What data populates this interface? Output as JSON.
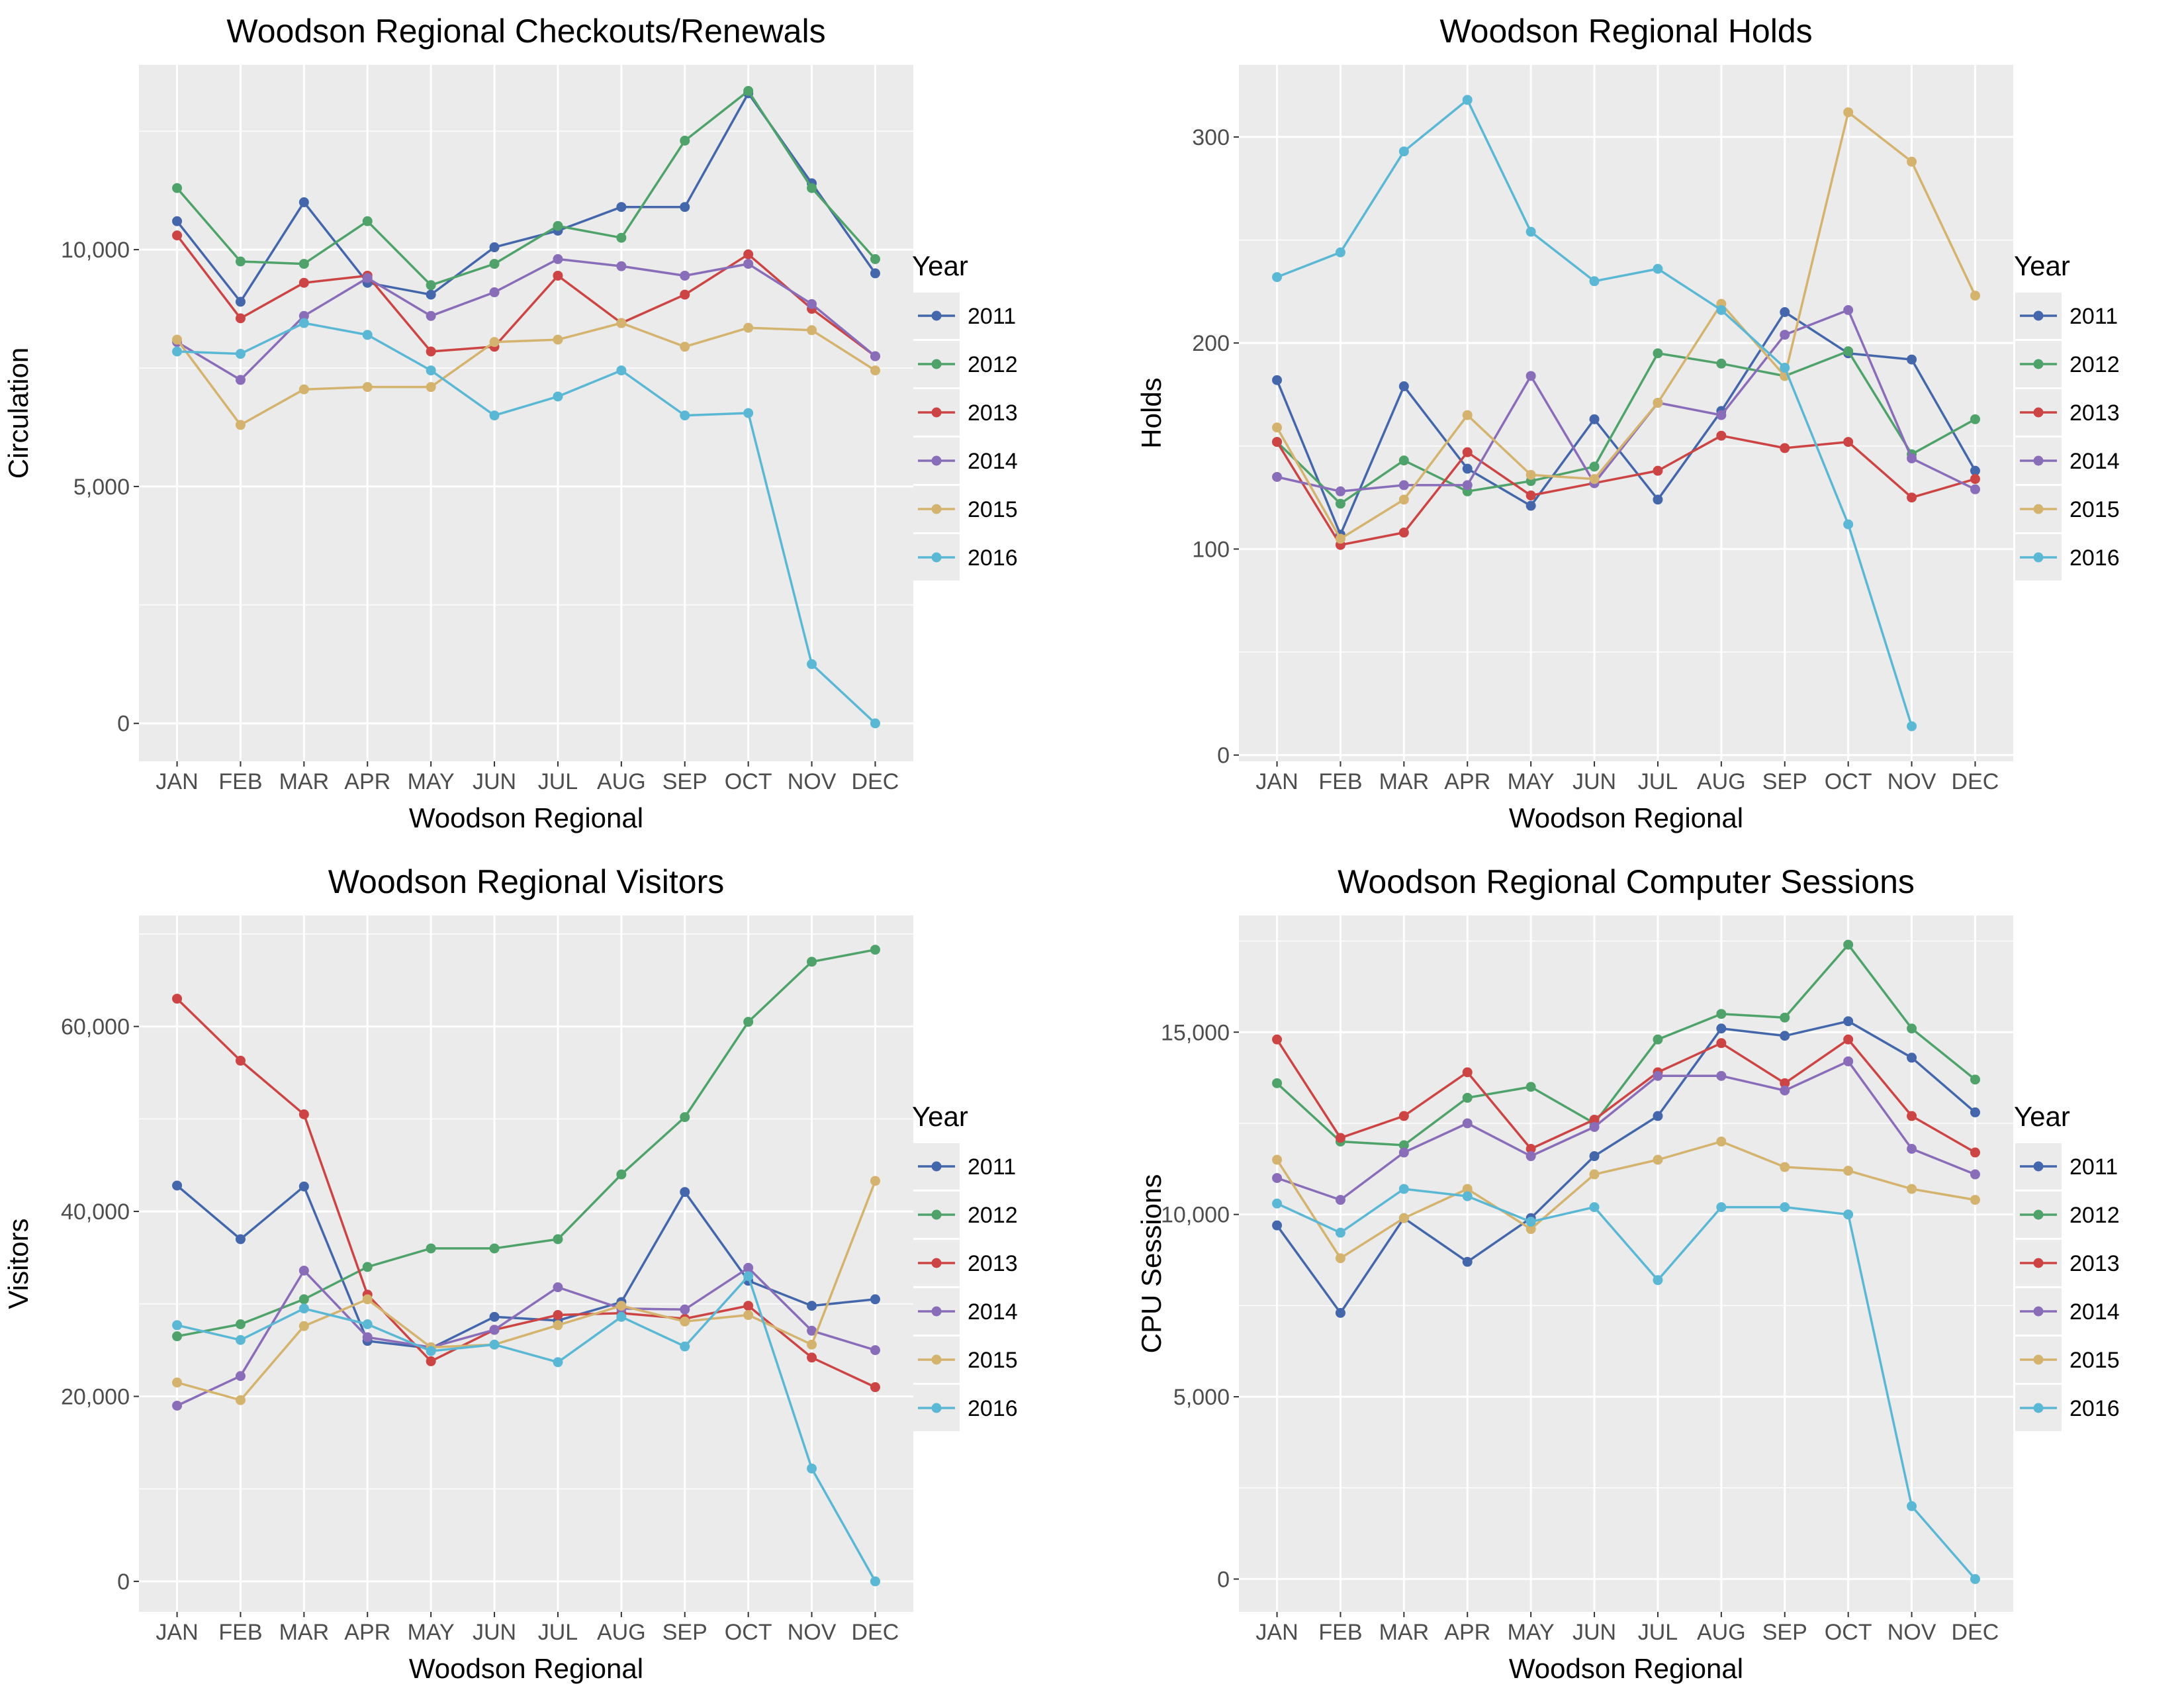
{
  "months": [
    "JAN",
    "FEB",
    "MAR",
    "APR",
    "MAY",
    "JUN",
    "JUL",
    "AUG",
    "SEP",
    "OCT",
    "NOV",
    "DEC"
  ],
  "legend": {
    "title": "Year",
    "entries": [
      "2011",
      "2012",
      "2013",
      "2014",
      "2015",
      "2016"
    ]
  },
  "colors": {
    "2011": "#4466aa",
    "2012": "#4ea26a",
    "2013": "#cc4444",
    "2014": "#8a6db8",
    "2015": "#d4b36e",
    "2016": "#5bb8d4",
    "panel_background": "#ebebeb",
    "grid": "#ffffff"
  },
  "chart_data": [
    {
      "type": "line",
      "title": "Woodson Regional Checkouts/Renewals",
      "xlabel": "Woodson Regional",
      "ylabel": "Circulation",
      "categories": [
        "JAN",
        "FEB",
        "MAR",
        "APR",
        "MAY",
        "JUN",
        "JUL",
        "AUG",
        "SEP",
        "OCT",
        "NOV",
        "DEC"
      ],
      "ylim": [
        -800,
        13900
      ],
      "yticks": [
        0,
        5000,
        10000
      ],
      "ytick_labels": [
        "0",
        "5,000",
        "10,000"
      ],
      "grid": true,
      "legend_position": "right",
      "series": [
        {
          "name": "2011",
          "values": [
            10600,
            8900,
            11000,
            9300,
            9050,
            10050,
            10400,
            10900,
            10900,
            13300,
            11400,
            9500
          ]
        },
        {
          "name": "2012",
          "values": [
            11300,
            9750,
            9700,
            10600,
            9250,
            9700,
            10500,
            10250,
            12300,
            13350,
            11300,
            9800
          ]
        },
        {
          "name": "2013",
          "values": [
            10300,
            8550,
            9300,
            9450,
            7850,
            7950,
            9450,
            8450,
            9050,
            9900,
            8750,
            7750
          ]
        },
        {
          "name": "2014",
          "values": [
            8050,
            7250,
            8600,
            9400,
            8600,
            9100,
            9800,
            9650,
            9450,
            9700,
            8850,
            7750
          ]
        },
        {
          "name": "2015",
          "values": [
            8100,
            6300,
            7050,
            7100,
            7100,
            8050,
            8100,
            8450,
            7950,
            8350,
            8300,
            7450
          ]
        },
        {
          "name": "2016",
          "values": [
            7850,
            7800,
            8450,
            8200,
            7450,
            6500,
            6900,
            7450,
            6500,
            6550,
            1250,
            0
          ]
        }
      ]
    },
    {
      "type": "line",
      "title": "Woodson Regional Holds",
      "xlabel": "Woodson Regional",
      "ylabel": "Holds",
      "categories": [
        "JAN",
        "FEB",
        "MAR",
        "APR",
        "MAY",
        "JUN",
        "JUL",
        "AUG",
        "SEP",
        "OCT",
        "NOV",
        "DEC"
      ],
      "ylim": [
        -3,
        335
      ],
      "yticks": [
        0,
        100,
        200,
        300
      ],
      "ytick_labels": [
        "0",
        "100",
        "200",
        "300"
      ],
      "grid": true,
      "legend_position": "right",
      "series": [
        {
          "name": "2011",
          "values": [
            182,
            107,
            179,
            139,
            121,
            163,
            124,
            167,
            215,
            195,
            192,
            138
          ]
        },
        {
          "name": "2012",
          "values": [
            152,
            122,
            143,
            128,
            133,
            140,
            195,
            190,
            184,
            196,
            146,
            163
          ]
        },
        {
          "name": "2013",
          "values": [
            152,
            102,
            108,
            147,
            126,
            132,
            138,
            155,
            149,
            152,
            125,
            134
          ]
        },
        {
          "name": "2014",
          "values": [
            135,
            128,
            131,
            131,
            184,
            132,
            171,
            165,
            204,
            216,
            144,
            129
          ]
        },
        {
          "name": "2015",
          "values": [
            159,
            105,
            124,
            165,
            136,
            134,
            171,
            219,
            184,
            312,
            288,
            223
          ]
        },
        {
          "name": "2016",
          "values": [
            232,
            244,
            293,
            318,
            254,
            230,
            236,
            216,
            188,
            112,
            14,
            null
          ]
        }
      ]
    },
    {
      "type": "line",
      "title": "Woodson Regional Visitors",
      "xlabel": "Woodson Regional",
      "ylabel": "Visitors",
      "categories": [
        "JAN",
        "FEB",
        "MAR",
        "APR",
        "MAY",
        "JUN",
        "JUL",
        "AUG",
        "SEP",
        "OCT",
        "NOV",
        "DEC"
      ],
      "ylim": [
        -3300,
        72000
      ],
      "yticks": [
        0,
        20000,
        40000,
        60000
      ],
      "ytick_labels": [
        "0",
        "20,000",
        "40,000",
        "60,000"
      ],
      "grid": true,
      "legend_position": "right",
      "series": [
        {
          "name": "2011",
          "values": [
            42800,
            37000,
            42700,
            26000,
            25200,
            28600,
            28200,
            30200,
            42100,
            32500,
            29800,
            30500
          ]
        },
        {
          "name": "2012",
          "values": [
            26500,
            27800,
            30500,
            34000,
            36000,
            36000,
            37000,
            44000,
            50200,
            60500,
            67000,
            68300
          ]
        },
        {
          "name": "2013",
          "values": [
            63000,
            56300,
            50500,
            31000,
            23800,
            27200,
            28800,
            29000,
            28400,
            29800,
            24200,
            21000
          ]
        },
        {
          "name": "2014",
          "values": [
            19000,
            22200,
            33600,
            26400,
            25300,
            27200,
            31800,
            29500,
            29400,
            33900,
            27100,
            25000
          ]
        },
        {
          "name": "2015",
          "values": [
            21500,
            19600,
            27600,
            30500,
            25300,
            25600,
            27700,
            29800,
            28100,
            28800,
            25600,
            43300
          ]
        },
        {
          "name": "2016",
          "values": [
            27700,
            26100,
            29500,
            27800,
            24900,
            25600,
            23700,
            28600,
            25400,
            33000,
            12200,
            0
          ]
        }
      ]
    },
    {
      "type": "line",
      "title": "Woodson Regional Computer Sessions",
      "xlabel": "Woodson Regional",
      "ylabel": "CPU Sessions",
      "categories": [
        "JAN",
        "FEB",
        "MAR",
        "APR",
        "MAY",
        "JUN",
        "JUL",
        "AUG",
        "SEP",
        "OCT",
        "NOV",
        "DEC"
      ],
      "ylim": [
        -900,
        18200
      ],
      "yticks": [
        0,
        5000,
        10000,
        15000
      ],
      "ytick_labels": [
        "0",
        "5,000",
        "10,000",
        "15,000"
      ],
      "grid": true,
      "legend_position": "right",
      "series": [
        {
          "name": "2011",
          "values": [
            9700,
            7300,
            9900,
            8700,
            9900,
            11600,
            12700,
            15100,
            14900,
            15300,
            14300,
            12800
          ]
        },
        {
          "name": "2012",
          "values": [
            13600,
            12000,
            11900,
            13200,
            13500,
            12500,
            14800,
            15500,
            15400,
            17400,
            15100,
            13700
          ]
        },
        {
          "name": "2013",
          "values": [
            14800,
            12100,
            12700,
            13900,
            11800,
            12600,
            13900,
            14700,
            13600,
            14800,
            12700,
            11700
          ]
        },
        {
          "name": "2014",
          "values": [
            11000,
            10400,
            11700,
            12500,
            11600,
            12400,
            13800,
            13800,
            13400,
            14200,
            11800,
            11100
          ]
        },
        {
          "name": "2015",
          "values": [
            11500,
            8800,
            9900,
            10700,
            9600,
            11100,
            11500,
            12000,
            11300,
            11200,
            10700,
            10400
          ]
        },
        {
          "name": "2016",
          "values": [
            10300,
            9500,
            10700,
            10500,
            9800,
            10200,
            8200,
            10200,
            10200,
            10000,
            2000,
            0
          ]
        }
      ]
    }
  ]
}
